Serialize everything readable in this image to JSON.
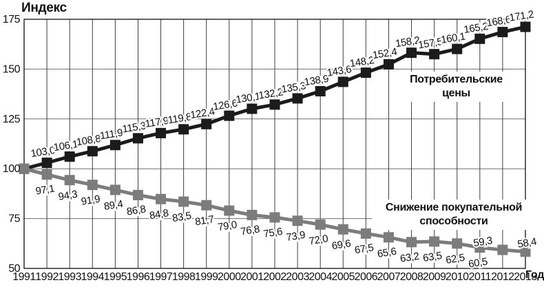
{
  "chart_data": {
    "type": "line",
    "ylabel": "Индекс",
    "xlabel": "Год",
    "categories": [
      "1991",
      "1992",
      "1993",
      "1994",
      "1995",
      "1996",
      "1997",
      "1998",
      "1999",
      "2000",
      "2001",
      "2002",
      "2003",
      "2004",
      "2005",
      "2006",
      "2007",
      "2008",
      "2009",
      "2010",
      "2011",
      "2012",
      "2013"
    ],
    "ylim": [
      50,
      175
    ],
    "yticks": [
      "175",
      "150",
      "125",
      "100",
      "75",
      "50"
    ],
    "ytick_values": [
      175,
      150,
      125,
      100,
      75,
      50
    ],
    "grid": true,
    "legend_position": "inside-right",
    "series": [
      {
        "name": "Потребительские цены",
        "name_lines": [
          "Потребительские",
          "цены"
        ],
        "color": "#1b1b1b",
        "values": [
          100,
          103.0,
          106.1,
          108.8,
          111.9,
          115.3,
          117.9,
          119.8,
          122.4,
          126.6,
          130.1,
          132.2,
          135.3,
          138.9,
          143.6,
          148.2,
          152.4,
          158.2,
          157.5,
          160.1,
          165.2,
          168.6,
          171.2
        ],
        "point_labels": [
          "",
          "103,0",
          "106,1",
          "108,8",
          "111,9",
          "115,3",
          "117,9",
          "119,8",
          "122,4",
          "126,6",
          "130,1",
          "132,2",
          "135,3",
          "138,9",
          "143,6",
          "148,2",
          "152,4",
          "158,2",
          "157,5",
          "160,1",
          "165,2",
          "168,6",
          "171,2"
        ]
      },
      {
        "name": "Снижение покупательной способности",
        "name_lines": [
          "Снижение покупательной",
          "способности"
        ],
        "color": "#7c7c7c",
        "values": [
          100,
          97.1,
          94.3,
          91.9,
          89.4,
          86.8,
          84.8,
          83.5,
          81.7,
          79.0,
          76.8,
          75.6,
          73.9,
          72.0,
          69.6,
          67.5,
          65.6,
          63.2,
          63.5,
          62.5,
          60.5,
          59.3,
          58.4
        ],
        "point_labels": [
          "",
          "97,1",
          "94,3",
          "91,9",
          "89,4",
          "86,8",
          "84,8",
          "83,5",
          "81,7",
          "79,0",
          "76,8",
          "75,6",
          "73,9",
          "72,0",
          "69,6",
          "67,5",
          "65,6",
          "63,2",
          "63,5",
          "62,5",
          "60,5",
          "59,3",
          "58,4"
        ]
      }
    ]
  }
}
